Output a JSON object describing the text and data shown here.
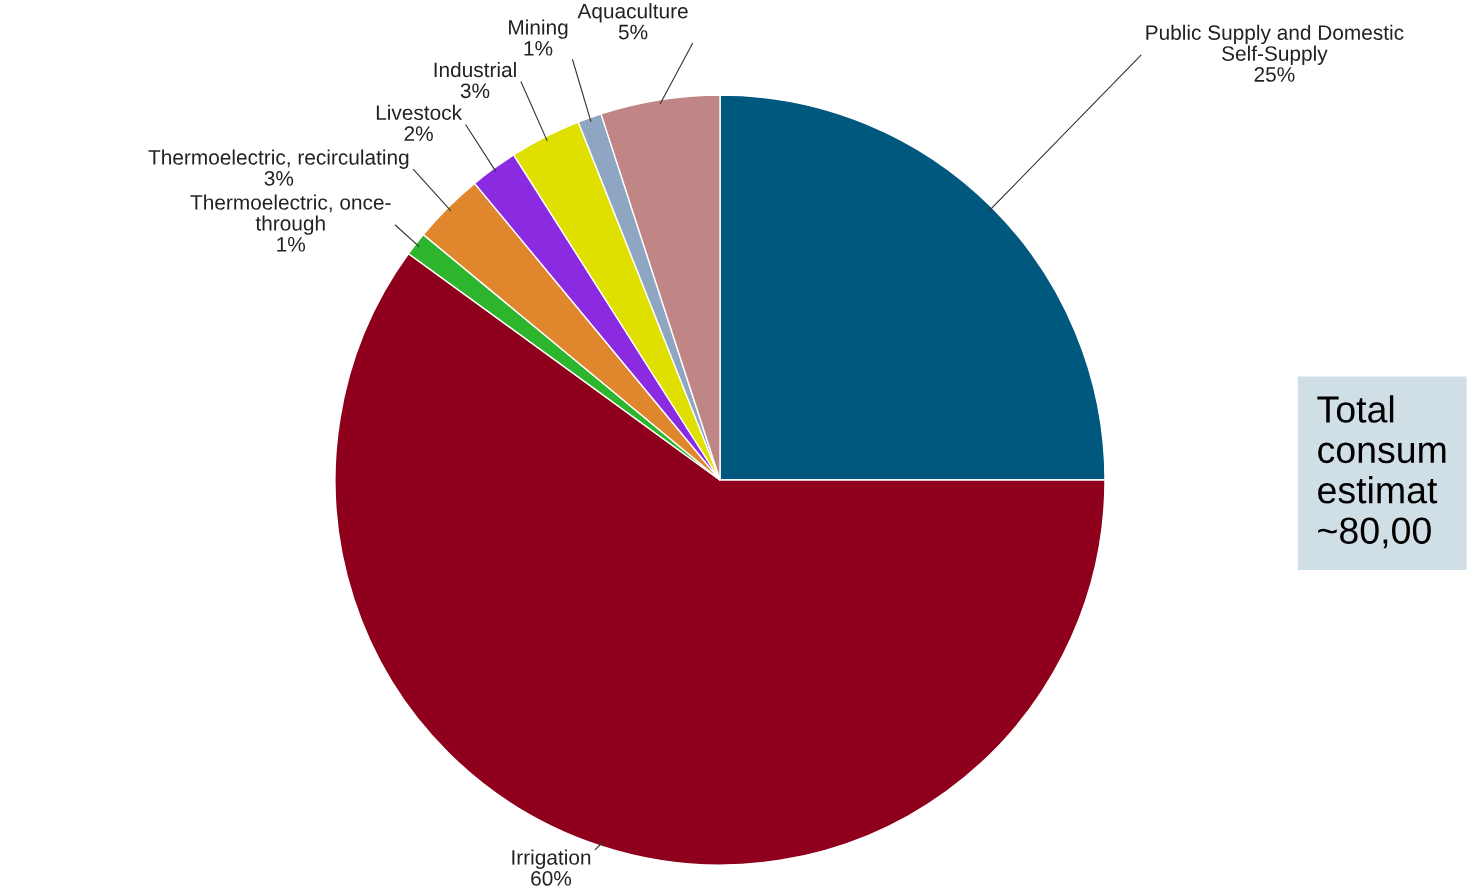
{
  "chart_data": {
    "type": "pie",
    "categories": [
      "Public Supply and Domestic Self-Supply",
      "Irrigation",
      "Thermoelectric, once-through",
      "Thermoelectric, recirculating",
      "Livestock",
      "Industrial",
      "Mining",
      "Aquaculture"
    ],
    "values": [
      25,
      60,
      1,
      3,
      2,
      3,
      1,
      5
    ],
    "colors": [
      "#00587f",
      "#8e001c",
      "#2db52d",
      "#e0862d",
      "#8a2be2",
      "#e0e000",
      "#8fa6c3",
      "#c08585"
    ],
    "value_labels": [
      "25%",
      "60%",
      "1%",
      "3%",
      "2%",
      "3%",
      "1%",
      "5%"
    ],
    "annotations": [
      "Total\nconsum\nestimat\n~80,00"
    ]
  }
}
